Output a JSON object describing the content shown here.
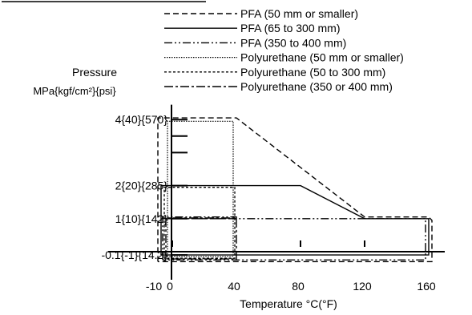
{
  "chart_data": {
    "type": "line",
    "ylabel_line1": "Pressure",
    "ylabel_line2": "MPa{kgf/cm²}{psi}",
    "xlabel": "Temperature °C(°F)",
    "x_ticks": [
      {
        "value": -10,
        "label": "-10"
      },
      {
        "value": 0,
        "label": "0"
      },
      {
        "value": 40,
        "label": "40"
      },
      {
        "value": 80,
        "label": "80"
      },
      {
        "value": 120,
        "label": "120"
      },
      {
        "value": 160,
        "label": "160"
      }
    ],
    "y_ticks": [
      {
        "value": -0.1,
        "label": "-0.1{-1}{14.2}"
      },
      {
        "value": 1,
        "label": "1{10}{142}"
      },
      {
        "value": 2,
        "label": "2{20}{285}"
      },
      {
        "value": 4,
        "label": "4{40}{570}"
      }
    ],
    "y_minor_ticks": [
      3,
      3.5
    ],
    "x_minor_ticks": [
      0,
      80,
      120
    ],
    "xlim": [
      -15,
      168
    ],
    "ylim": [
      -0.3,
      4.3
    ],
    "series": [
      {
        "name": "PFA (50 mm or smaller)",
        "style": "dashed-long",
        "x": [
          -9,
          -9,
          40,
          120,
          160,
          162,
          162,
          40,
          -9
        ],
        "y": [
          -0.3,
          4.05,
          4.05,
          1.05,
          1.05,
          0.95,
          -0.3,
          -0.3,
          -0.3
        ]
      },
      {
        "name": "PFA (65 to 300 mm)",
        "style": "solid",
        "x": [
          -7,
          -7,
          80,
          120,
          160,
          160,
          -7
        ],
        "y": [
          -0.1,
          2,
          2,
          1,
          1,
          -0.1,
          -0.1
        ]
      },
      {
        "name": "PFA (350 to 400 mm)",
        "style": "dash-dot-dot",
        "x": [
          -6,
          -6,
          40,
          40,
          -6,
          -6,
          158,
          158,
          -6
        ],
        "y": [
          -0.25,
          1.05,
          1.05,
          1.0,
          1.0,
          1.0,
          1.0,
          -0.25,
          -0.25
        ]
      },
      {
        "name": "Polyurethane (50 mm or smaller)",
        "style": "dotted",
        "x": [
          -3,
          -3,
          38,
          38,
          -3
        ],
        "y": [
          -0.15,
          3.95,
          3.95,
          -0.15,
          -0.15
        ]
      },
      {
        "name": "Polyurethane (50 to 300 mm)",
        "style": "dashed-short",
        "x": [
          -5,
          -5,
          39,
          39,
          -5
        ],
        "y": [
          -0.2,
          1.95,
          1.95,
          -0.2,
          -0.2
        ]
      },
      {
        "name": "Polyurethane (350 or 400 mm)",
        "style": "dash-dot",
        "x": [
          -4,
          -4,
          40,
          40,
          -4
        ],
        "y": [
          -0.22,
          1.02,
          1.02,
          -0.22,
          -0.22
        ]
      }
    ]
  }
}
